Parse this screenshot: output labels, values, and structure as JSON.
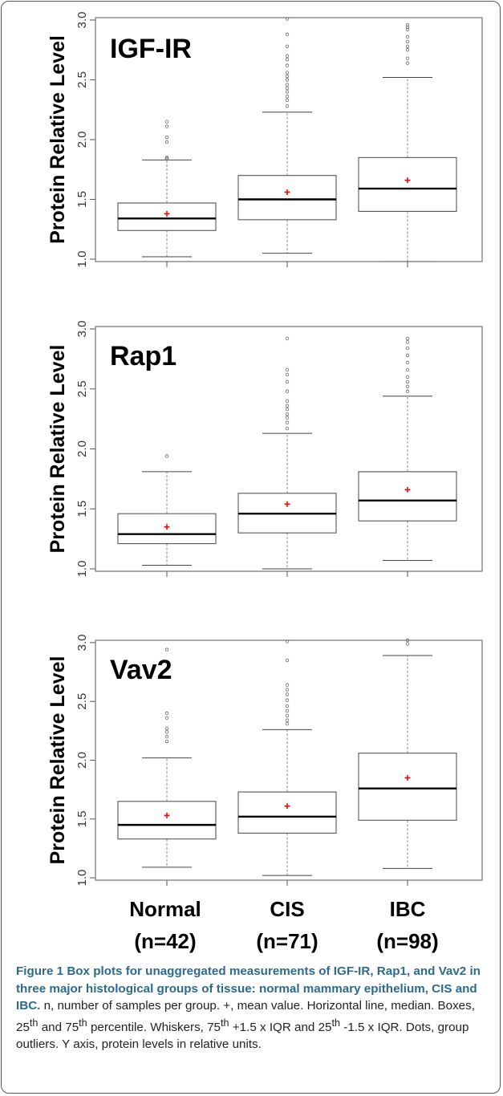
{
  "chart_data": [
    {
      "type": "box",
      "title": "IGF-IR",
      "ylabel": "Protein Relative Level",
      "ylim": [
        0.98,
        3.02
      ],
      "yticks": [
        1.0,
        1.5,
        2.0,
        2.5,
        3.0
      ],
      "tick_labels": [
        "1.0",
        "1.5",
        "2.0",
        "2.5",
        "3.0"
      ],
      "categories": [
        "Normal",
        "CIS",
        "IBC"
      ],
      "boxes": [
        {
          "whisker_low": 1.02,
          "q1": 1.24,
          "median": 1.34,
          "q3": 1.47,
          "whisker_high": 1.83,
          "mean": 1.38,
          "outliers": [
            1.84,
            1.85,
            1.98,
            2.02,
            2.11,
            2.15
          ]
        },
        {
          "whisker_low": 1.05,
          "q1": 1.33,
          "median": 1.5,
          "q3": 1.7,
          "whisker_high": 2.23,
          "mean": 1.56,
          "outliers": [
            2.28,
            2.33,
            2.36,
            2.4,
            2.43,
            2.46,
            2.5,
            2.53,
            2.56,
            2.62,
            2.67,
            2.7,
            2.78,
            2.88,
            3.01
          ]
        },
        {
          "whisker_low": 0.98,
          "q1": 1.4,
          "median": 1.59,
          "q3": 1.85,
          "whisker_high": 2.52,
          "mean": 1.66,
          "outliers": [
            2.64,
            2.68,
            2.75,
            2.78,
            2.82,
            2.86,
            2.92,
            2.94,
            2.96
          ]
        }
      ]
    },
    {
      "type": "box",
      "title": "Rap1",
      "ylabel": "Protein Relative Level",
      "ylim": [
        0.98,
        3.02
      ],
      "yticks": [
        1.0,
        1.5,
        2.0,
        2.5,
        3.0
      ],
      "tick_labels": [
        "1.0",
        "1.5",
        "2.0",
        "2.5",
        "3.0"
      ],
      "categories": [
        "Normal",
        "CIS",
        "IBC"
      ],
      "boxes": [
        {
          "whisker_low": 1.03,
          "q1": 1.21,
          "median": 1.29,
          "q3": 1.46,
          "whisker_high": 1.81,
          "mean": 1.35,
          "outliers": [
            1.94
          ]
        },
        {
          "whisker_low": 1.0,
          "q1": 1.3,
          "median": 1.46,
          "q3": 1.63,
          "whisker_high": 2.13,
          "mean": 1.54,
          "outliers": [
            2.17,
            2.22,
            2.26,
            2.29,
            2.33,
            2.36,
            2.4,
            2.48,
            2.56,
            2.62,
            2.66,
            2.92
          ]
        },
        {
          "whisker_low": 1.07,
          "q1": 1.4,
          "median": 1.57,
          "q3": 1.81,
          "whisker_high": 2.44,
          "mean": 1.66,
          "outliers": [
            2.48,
            2.52,
            2.56,
            2.6,
            2.66,
            2.72,
            2.78,
            2.84,
            2.89,
            2.92
          ]
        }
      ]
    },
    {
      "type": "box",
      "title": "Vav2",
      "ylabel": "Protein Relative Level",
      "ylim": [
        0.98,
        3.02
      ],
      "yticks": [
        1.0,
        1.5,
        2.0,
        2.5,
        3.0
      ],
      "tick_labels": [
        "1.0",
        "1.5",
        "2.0",
        "2.5",
        "3.0"
      ],
      "categories": [
        "Normal",
        "CIS",
        "IBC"
      ],
      "boxes": [
        {
          "whisker_low": 1.09,
          "q1": 1.33,
          "median": 1.45,
          "q3": 1.65,
          "whisker_high": 2.02,
          "mean": 1.53,
          "outliers": [
            2.16,
            2.2,
            2.24,
            2.27,
            2.36,
            2.4,
            2.94
          ]
        },
        {
          "whisker_low": 1.02,
          "q1": 1.38,
          "median": 1.52,
          "q3": 1.73,
          "whisker_high": 2.26,
          "mean": 1.61,
          "outliers": [
            2.31,
            2.34,
            2.38,
            2.42,
            2.46,
            2.51,
            2.56,
            2.6,
            2.64,
            2.85,
            3.01
          ]
        },
        {
          "whisker_low": 1.08,
          "q1": 1.49,
          "median": 1.76,
          "q3": 2.06,
          "whisker_high": 2.89,
          "mean": 1.85,
          "outliers": [
            2.99,
            3.02
          ]
        }
      ]
    }
  ],
  "x_categories": [
    {
      "name": "Normal",
      "n": "(n=42)"
    },
    {
      "name": "CIS",
      "n": "(n=71)"
    },
    {
      "name": "IBC",
      "n": "(n=98)"
    }
  ],
  "colors": {
    "mean_marker": "#ff0000",
    "axis": "#555555",
    "outlier": "#666666"
  },
  "caption": {
    "figure_label": "Figure 1",
    "heading": "Box plots for unaggregated measurements of IGF-IR, Rap1, and Vav2 in three major histological groups of tissue: normal mammary epithelium, CIS and IBC.",
    "body_1": " n, number of samples per group. +, mean value. Horizontal line, median. Boxes, 25",
    "sup_1": "th",
    "body_2": " and 75",
    "sup_2": "th",
    "body_3": " percentile. Whiskers, 75",
    "sup_3": "th",
    "body_4": " +1.5 x IQR and 25",
    "sup_4": "th",
    "body_5": " -1.5 x IQR. Dots, group outliers. Y axis, protein levels in relative units."
  }
}
